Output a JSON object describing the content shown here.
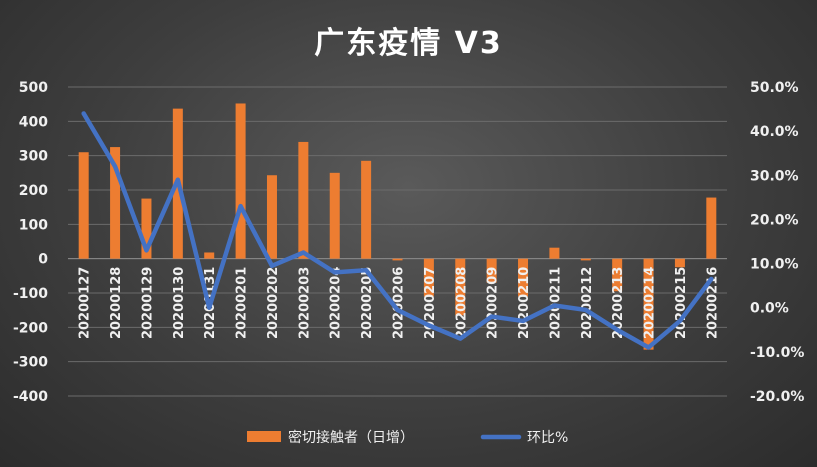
{
  "chart_data": {
    "type": "bar+line",
    "title": "广东疫情 V3",
    "categories": [
      "20200127",
      "20200128",
      "20200129",
      "20200130",
      "20200131",
      "20200201",
      "20200202",
      "20200203",
      "20200204",
      "20200205",
      "20200206",
      "20200207",
      "20200208",
      "20200209",
      "20200210",
      "20200211",
      "20200212",
      "20200213",
      "20200214",
      "20200215",
      "20200216"
    ],
    "series": [
      {
        "name": "密切接触者（日增）",
        "type": "bar",
        "axis": "left",
        "color": "#ed7d31",
        "values": [
          310,
          325,
          175,
          437,
          18,
          452,
          243,
          340,
          250,
          285,
          -5,
          -110,
          -165,
          -70,
          -110,
          32,
          -5,
          -95,
          -265,
          -25,
          178
        ]
      },
      {
        "name": "环比%",
        "type": "line",
        "axis": "right",
        "color": "#4472c4",
        "values": [
          0.44,
          0.32,
          0.13,
          0.29,
          0.0,
          0.23,
          0.095,
          0.125,
          0.08,
          0.085,
          -0.005,
          -0.04,
          -0.07,
          -0.02,
          -0.03,
          0.005,
          -0.005,
          -0.05,
          -0.09,
          -0.03,
          0.065
        ]
      }
    ],
    "y_left": {
      "ylim": [
        -400,
        500
      ],
      "ticks": [
        "500",
        "400",
        "300",
        "200",
        "100",
        "0",
        "-100",
        "-200",
        "-300",
        "-400"
      ]
    },
    "y_right": {
      "ylim": [
        -0.2,
        0.5
      ],
      "ticks": [
        "50.0%",
        "40.0%",
        "30.0%",
        "20.0%",
        "10.0%",
        "0.0%",
        "-10.0%",
        "-20.0%"
      ]
    },
    "grid": true,
    "legend_position": "bottom"
  }
}
